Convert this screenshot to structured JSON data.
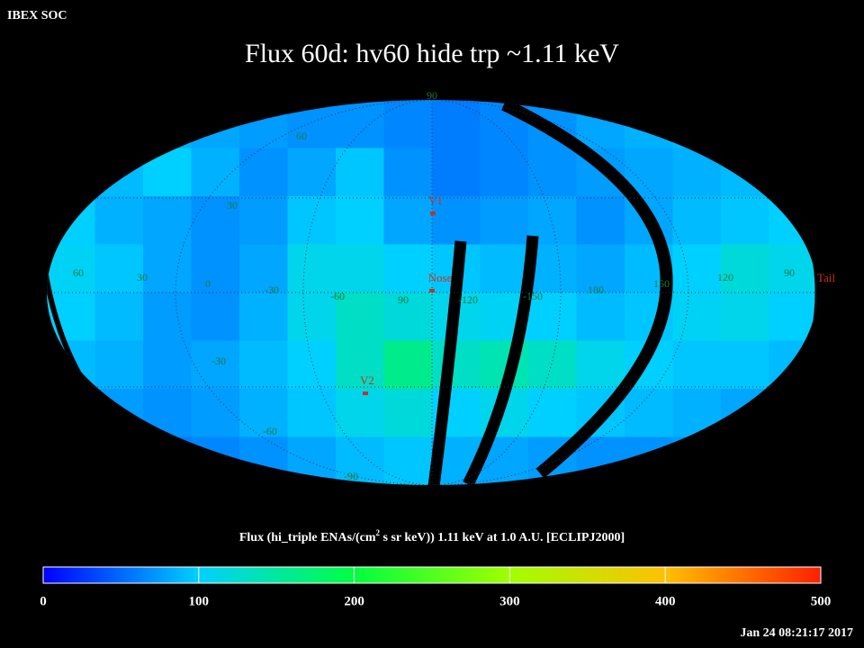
{
  "chart_data": {
    "type": "heatmap",
    "header": "IBEX SOC",
    "title": "Flux   60d: hv60 hide trp ~1.11 keV",
    "colorbar_label": [
      "Flux (hi_triple ENAs/(cm",
      "2",
      " s sr keV))  1.11 keV at 1.0 A.U. [ECLIPJ2000]"
    ],
    "timestamp": "Jan 24 08:21:17 2017",
    "zlim": [
      0,
      500
    ],
    "zticks": [
      0,
      100,
      200,
      300,
      400,
      500
    ],
    "colormap": [
      "#0000ff",
      "#00d0ff",
      "#00ff40",
      "#a0ff00",
      "#ffc000",
      "#ff2000"
    ],
    "values": [
      [
        90,
        90,
        85,
        80,
        75,
        70,
        70,
        65,
        60,
        65,
        70,
        80,
        85,
        90,
        90,
        90
      ],
      [
        95,
        90,
        100,
        85,
        70,
        80,
        95,
        70,
        60,
        65,
        70,
        75,
        80,
        85,
        90,
        95
      ],
      [
        100,
        85,
        80,
        70,
        75,
        95,
        100,
        80,
        70,
        75,
        80,
        70,
        80,
        90,
        95,
        100
      ],
      [
        105,
        95,
        80,
        70,
        80,
        110,
        110,
        100,
        95,
        90,
        85,
        80,
        90,
        100,
        120,
        110
      ],
      [
        100,
        90,
        75,
        70,
        85,
        110,
        130,
        120,
        110,
        105,
        100,
        90,
        95,
        105,
        110,
        100
      ],
      [
        90,
        85,
        75,
        80,
        90,
        100,
        130,
        160,
        130,
        140,
        130,
        110,
        100,
        95,
        95,
        90
      ],
      [
        80,
        75,
        70,
        75,
        85,
        95,
        110,
        120,
        100,
        110,
        100,
        95,
        90,
        85,
        80,
        80
      ],
      [
        75,
        70,
        60,
        65,
        70,
        80,
        90,
        95,
        85,
        80,
        75,
        70,
        70,
        75,
        75,
        70
      ]
    ],
    "grid_labels": [
      "90",
      "60",
      "30",
      "60",
      "30",
      "0",
      "-30",
      "-60",
      "90",
      "-120",
      "-150",
      "180",
      "150",
      "120",
      "90",
      "-30",
      "-60",
      "-90"
    ],
    "markers": [
      "V1",
      "Nose",
      "V2",
      "Tail"
    ]
  }
}
